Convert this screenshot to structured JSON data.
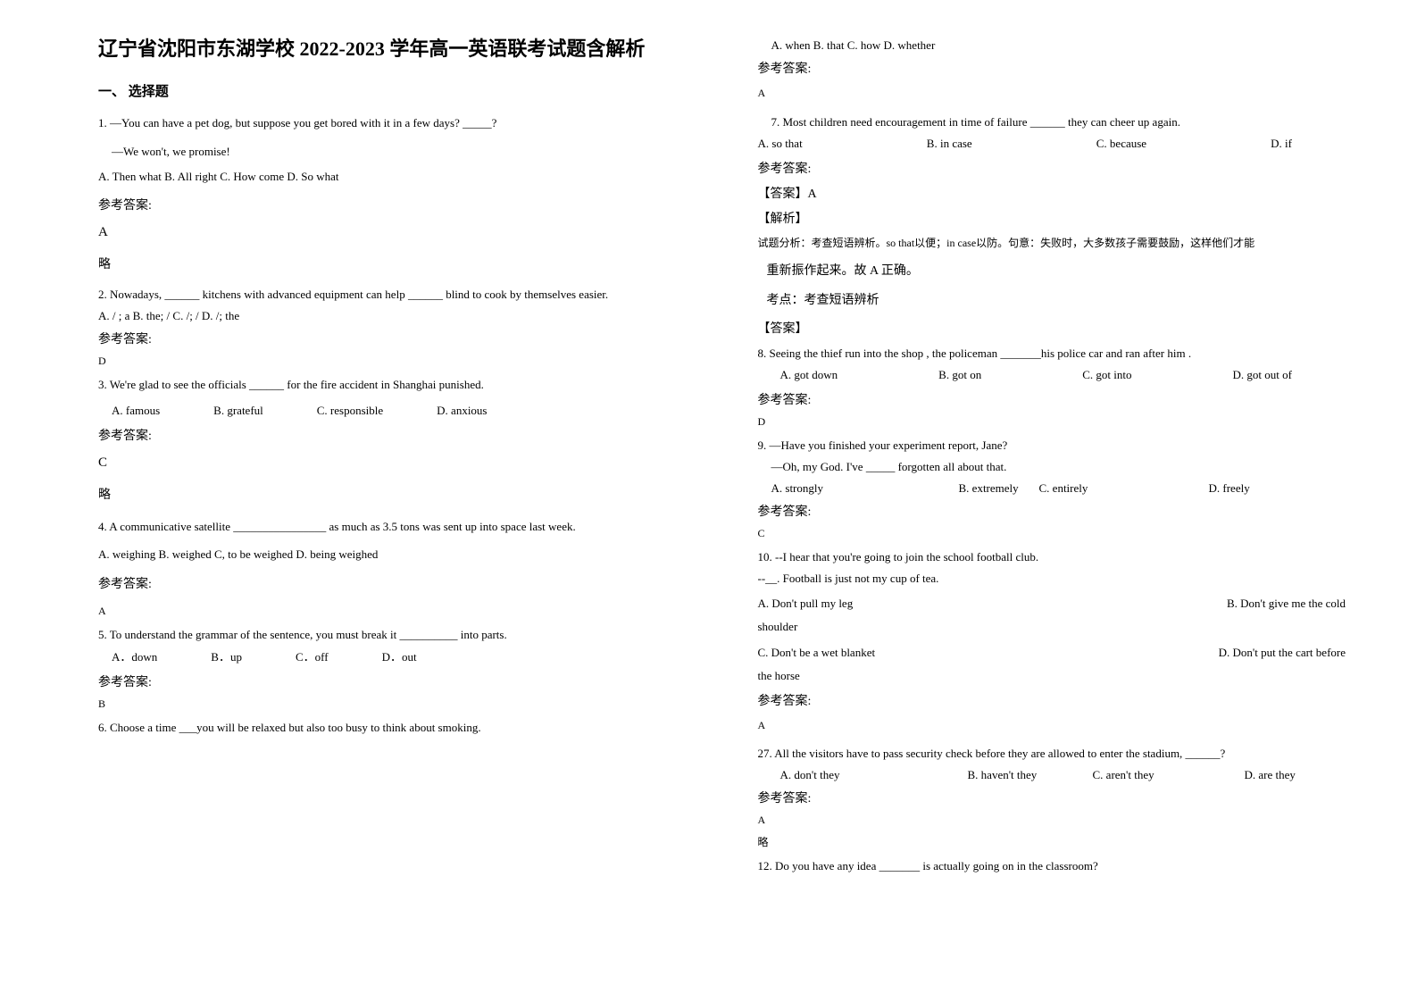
{
  "title": "辽宁省沈阳市东湖学校 2022-2023 学年高一英语联考试题含解析",
  "section1": "一、 选择题",
  "q1": {
    "line1": "1. —You can have a pet dog, but suppose you get bored with it in a few days? _____?",
    "line2": "—We won't, we promise!",
    "opts": "A. Then what      B. All right    C. How come     D. So what",
    "ansLabel": "参考答案:",
    "ans": "A",
    "note": "略"
  },
  "q2": {
    "text": "2. Nowadays, ______ kitchens with advanced equipment can help ______ blind to cook by themselves easier.",
    "opts": "A. / ; a   B. the; /   C. /; /    D. /; the",
    "ansLabel": "参考答案:",
    "ans": "D"
  },
  "q3": {
    "text": "3. We're glad to see the officials ______ for the fire accident in Shanghai punished.",
    "oa": "A. famous",
    "ob": "B. grateful",
    "oc": "C. responsible",
    "od": "D. anxious",
    "ansLabel": "参考答案:",
    "ans": "C",
    "note": "略"
  },
  "q4": {
    "text": "4. A communicative satellite ________________ as much as 3.5 tons was sent up into space last week.",
    "opts": "A. weighing      B. weighed      C, to be weighed      D. being weighed",
    "ansLabel": "参考答案:",
    "ans": "A"
  },
  "q5": {
    "text": "5. To understand the grammar of the sentence, you must break it __________ into parts.",
    "oa": "A．down",
    "ob": "B．up",
    "oc": "C．off",
    "od": "D．out",
    "ansLabel": "参考答案:",
    "ans": "B"
  },
  "q6": {
    "text": "6. Choose a time ___you will be relaxed but also too busy to think about smoking.",
    "opts": "A. when       B. that C. how D. whether",
    "ansLabel": "参考答案:",
    "ans": "A"
  },
  "q7": {
    "text": "7. Most children need encouragement in time of failure ______ they can cheer up again.",
    "oa": "A. so that",
    "ob": "B. in case",
    "oc": "C. because",
    "od": "D. if",
    "ansLabel": "参考答案:",
    "ansHead": "【答案】A",
    "expHead": "【解析】",
    "exp1": "试题分析：考查短语辨析。so that以便；in case以防。句意：失败时，大多数孩子需要鼓励，这样他们才能",
    "exp2": "重新振作起来。故 A 正确。",
    "exp3": "考点：考查短语辨析",
    "exp4": "【答案】"
  },
  "q8": {
    "text": "8. Seeing the thief run into the shop , the policeman _______his police car and ran after him .",
    "oa": "A. got down",
    "ob": "B. got on",
    "oc": "C. got into",
    "od": "D. got out of",
    "ansLabel": "参考答案:",
    "ans": "D"
  },
  "q9": {
    "line1": "9. —Have you finished your experiment report, Jane?",
    "line2": "—Oh, my God. I've _____ forgotten all about that.",
    "oa": "A. strongly",
    "ob": "B. extremely",
    "oc": "C. entirely",
    "od": "D. freely",
    "ansLabel": "参考答案:",
    "ans": "C"
  },
  "q10": {
    "line1": "10. --I hear that you're going to join the school football club.",
    "line2": "--__. Football is just not my cup of tea.",
    "oa": "A. Don't pull my leg",
    "ob": "B. Don't give me the cold",
    "obx": "shoulder",
    "oc": "C. Don't be a wet blanket",
    "od": "D. Don't put the cart before",
    "odx": "the horse",
    "ansLabel": "参考答案:",
    "ans": "A"
  },
  "q11": {
    "text": "27. All the visitors have to pass security check before they are allowed to enter the stadium, ______?",
    "oa": "A. don't they",
    "ob": "B. haven't they",
    "oc": "C. aren't they",
    "od": "D. are they",
    "ansLabel": "参考答案:",
    "ans": "A",
    "note": "略"
  },
  "q12": {
    "text": "12. Do you have any idea _______ is actually going on in the classroom?"
  }
}
